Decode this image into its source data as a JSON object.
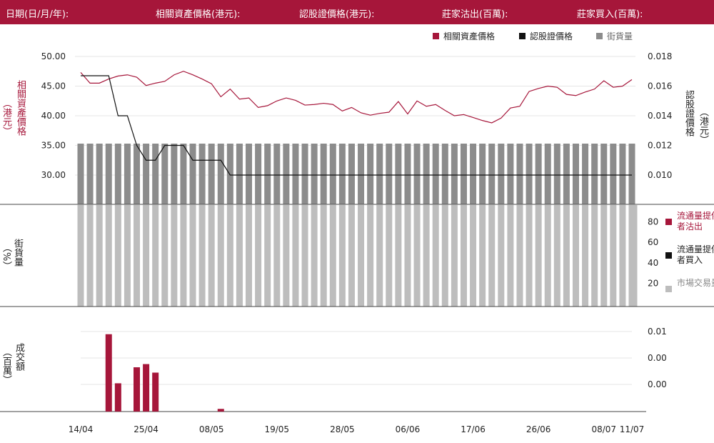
{
  "header": {
    "date_label": "日期(日/月/年):",
    "underlying_price_label": "相關資產價格(港元):",
    "warrant_price_label": "認股證價格(港元):",
    "issuer_sell_label": "莊家沽出(百萬):",
    "issuer_buy_label": "莊家買入(百萬):"
  },
  "colors": {
    "accent": "#a6163a",
    "warrant": "#111111",
    "outstanding": "#8c8c8c",
    "market": "#bdbdbd",
    "grid": "#e6e6e6"
  },
  "chart_data": [
    {
      "type": "line",
      "legend": [
        "相關資產價格",
        "認股證價格",
        "街貨量"
      ],
      "legend_position": "top-right",
      "left_axis_label": "相關資產價格",
      "left_axis_unit": "港元",
      "right_axis_label": "認股證價格",
      "right_axis_unit": "港元",
      "left_ticks": [
        "50.00",
        "45.00",
        "40.00",
        "35.00",
        "30.00"
      ],
      "right_ticks": [
        "0.018",
        "0.016",
        "0.014",
        "0.012",
        "0.010"
      ],
      "ylim_left": [
        25,
        52
      ],
      "ylim_right": [
        0.0085,
        0.0185
      ],
      "series": [
        {
          "name": "相關資產價格",
          "values": [
            47.3,
            45.5,
            45.5,
            46.2,
            46.7,
            46.9,
            46.5,
            45.1,
            45.5,
            45.8,
            46.9,
            47.5,
            46.9,
            46.2,
            45.4,
            43.2,
            44.5,
            42.8,
            43.0,
            41.4,
            41.7,
            42.5,
            43.0,
            42.6,
            41.8,
            41.9,
            42.1,
            41.9,
            40.8,
            41.4,
            40.5,
            40.1,
            40.4,
            40.6,
            42.4,
            40.3,
            42.5,
            41.6,
            41.9,
            40.9,
            40.0,
            40.2,
            39.7,
            39.2,
            38.8,
            39.6,
            41.3,
            41.6,
            44.1,
            44.6,
            45.0,
            44.8,
            43.6,
            43.4,
            44.0,
            44.5,
            45.9,
            44.8,
            45.0,
            46.1
          ]
        },
        {
          "name": "認股證價格",
          "values": [
            0.0167,
            0.0167,
            0.0167,
            0.0167,
            0.014,
            0.014,
            0.012,
            0.011,
            0.011,
            0.012,
            0.012,
            0.012,
            0.011,
            0.011,
            0.011,
            0.011,
            0.01,
            0.01,
            0.01,
            0.01,
            0.01,
            0.01,
            0.01,
            0.01,
            0.01,
            0.01,
            0.01,
            0.01,
            0.01,
            0.01,
            0.01,
            0.01,
            0.01,
            0.01,
            0.01,
            0.01,
            0.01,
            0.01,
            0.01,
            0.01,
            0.01,
            0.01,
            0.01,
            0.01,
            0.01,
            0.01,
            0.01,
            0.01,
            0.01,
            0.01,
            0.01,
            0.01,
            0.01,
            0.01,
            0.01,
            0.01,
            0.01,
            0.01,
            0.01,
            0.01
          ]
        },
        {
          "name": "街貨量",
          "constant_level": 35.3
        }
      ]
    },
    {
      "type": "bar",
      "axis_label": "街貨量",
      "axis_unit": "%",
      "legend": [
        "流通量提供者沽出",
        "流通量提供者買入",
        "市場交易量"
      ],
      "right_ticks": [
        "80",
        "60",
        "40",
        "20"
      ],
      "ylim": [
        0,
        100
      ],
      "bar_value": 100
    },
    {
      "type": "bar",
      "axis_label": "成交額",
      "axis_unit": "百萬",
      "right_ticks": [
        "0.01",
        "0.00",
        "0.00"
      ],
      "ylim": [
        0,
        0.015
      ],
      "bars": [
        {
          "index": 3,
          "value": 0.0145
        },
        {
          "index": 4,
          "value": 0.0053
        },
        {
          "index": 6,
          "value": 0.0083
        },
        {
          "index": 7,
          "value": 0.0089
        },
        {
          "index": 8,
          "value": 0.0073
        },
        {
          "index": 15,
          "value": 0.0005
        }
      ]
    }
  ],
  "x_labels": [
    {
      "label": "14/04",
      "i": 0
    },
    {
      "label": "25/04",
      "i": 7
    },
    {
      "label": "08/05",
      "i": 14
    },
    {
      "label": "19/05",
      "i": 21
    },
    {
      "label": "28/05",
      "i": 28
    },
    {
      "label": "06/06",
      "i": 35
    },
    {
      "label": "17/06",
      "i": 42
    },
    {
      "label": "26/06",
      "i": 49
    },
    {
      "label": "08/07",
      "i": 56
    },
    {
      "label": "11/07",
      "i": 59
    }
  ]
}
